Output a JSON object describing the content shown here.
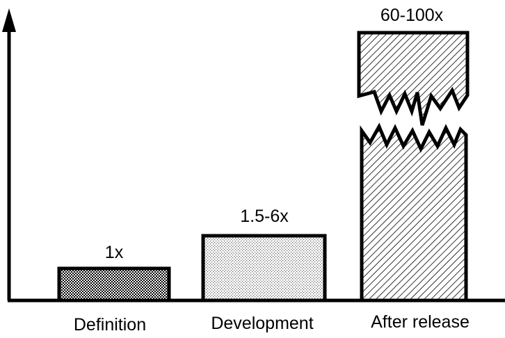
{
  "chart_data": {
    "type": "bar",
    "title": "",
    "xlabel": "",
    "ylabel": "",
    "categories": [
      "Definition",
      "Development",
      "After release"
    ],
    "value_labels": [
      "1x",
      "1.5-6x",
      "60-100x"
    ],
    "bar_heights": [
      1,
      2,
      8.5
    ],
    "axis_broken_bar": "After release",
    "grid": false,
    "legend": "none",
    "patterns": [
      "checkered",
      "stippled",
      "diagonal-hatch"
    ],
    "colors": {
      "bar_outline": "#000000",
      "background": "#ffffff"
    }
  }
}
